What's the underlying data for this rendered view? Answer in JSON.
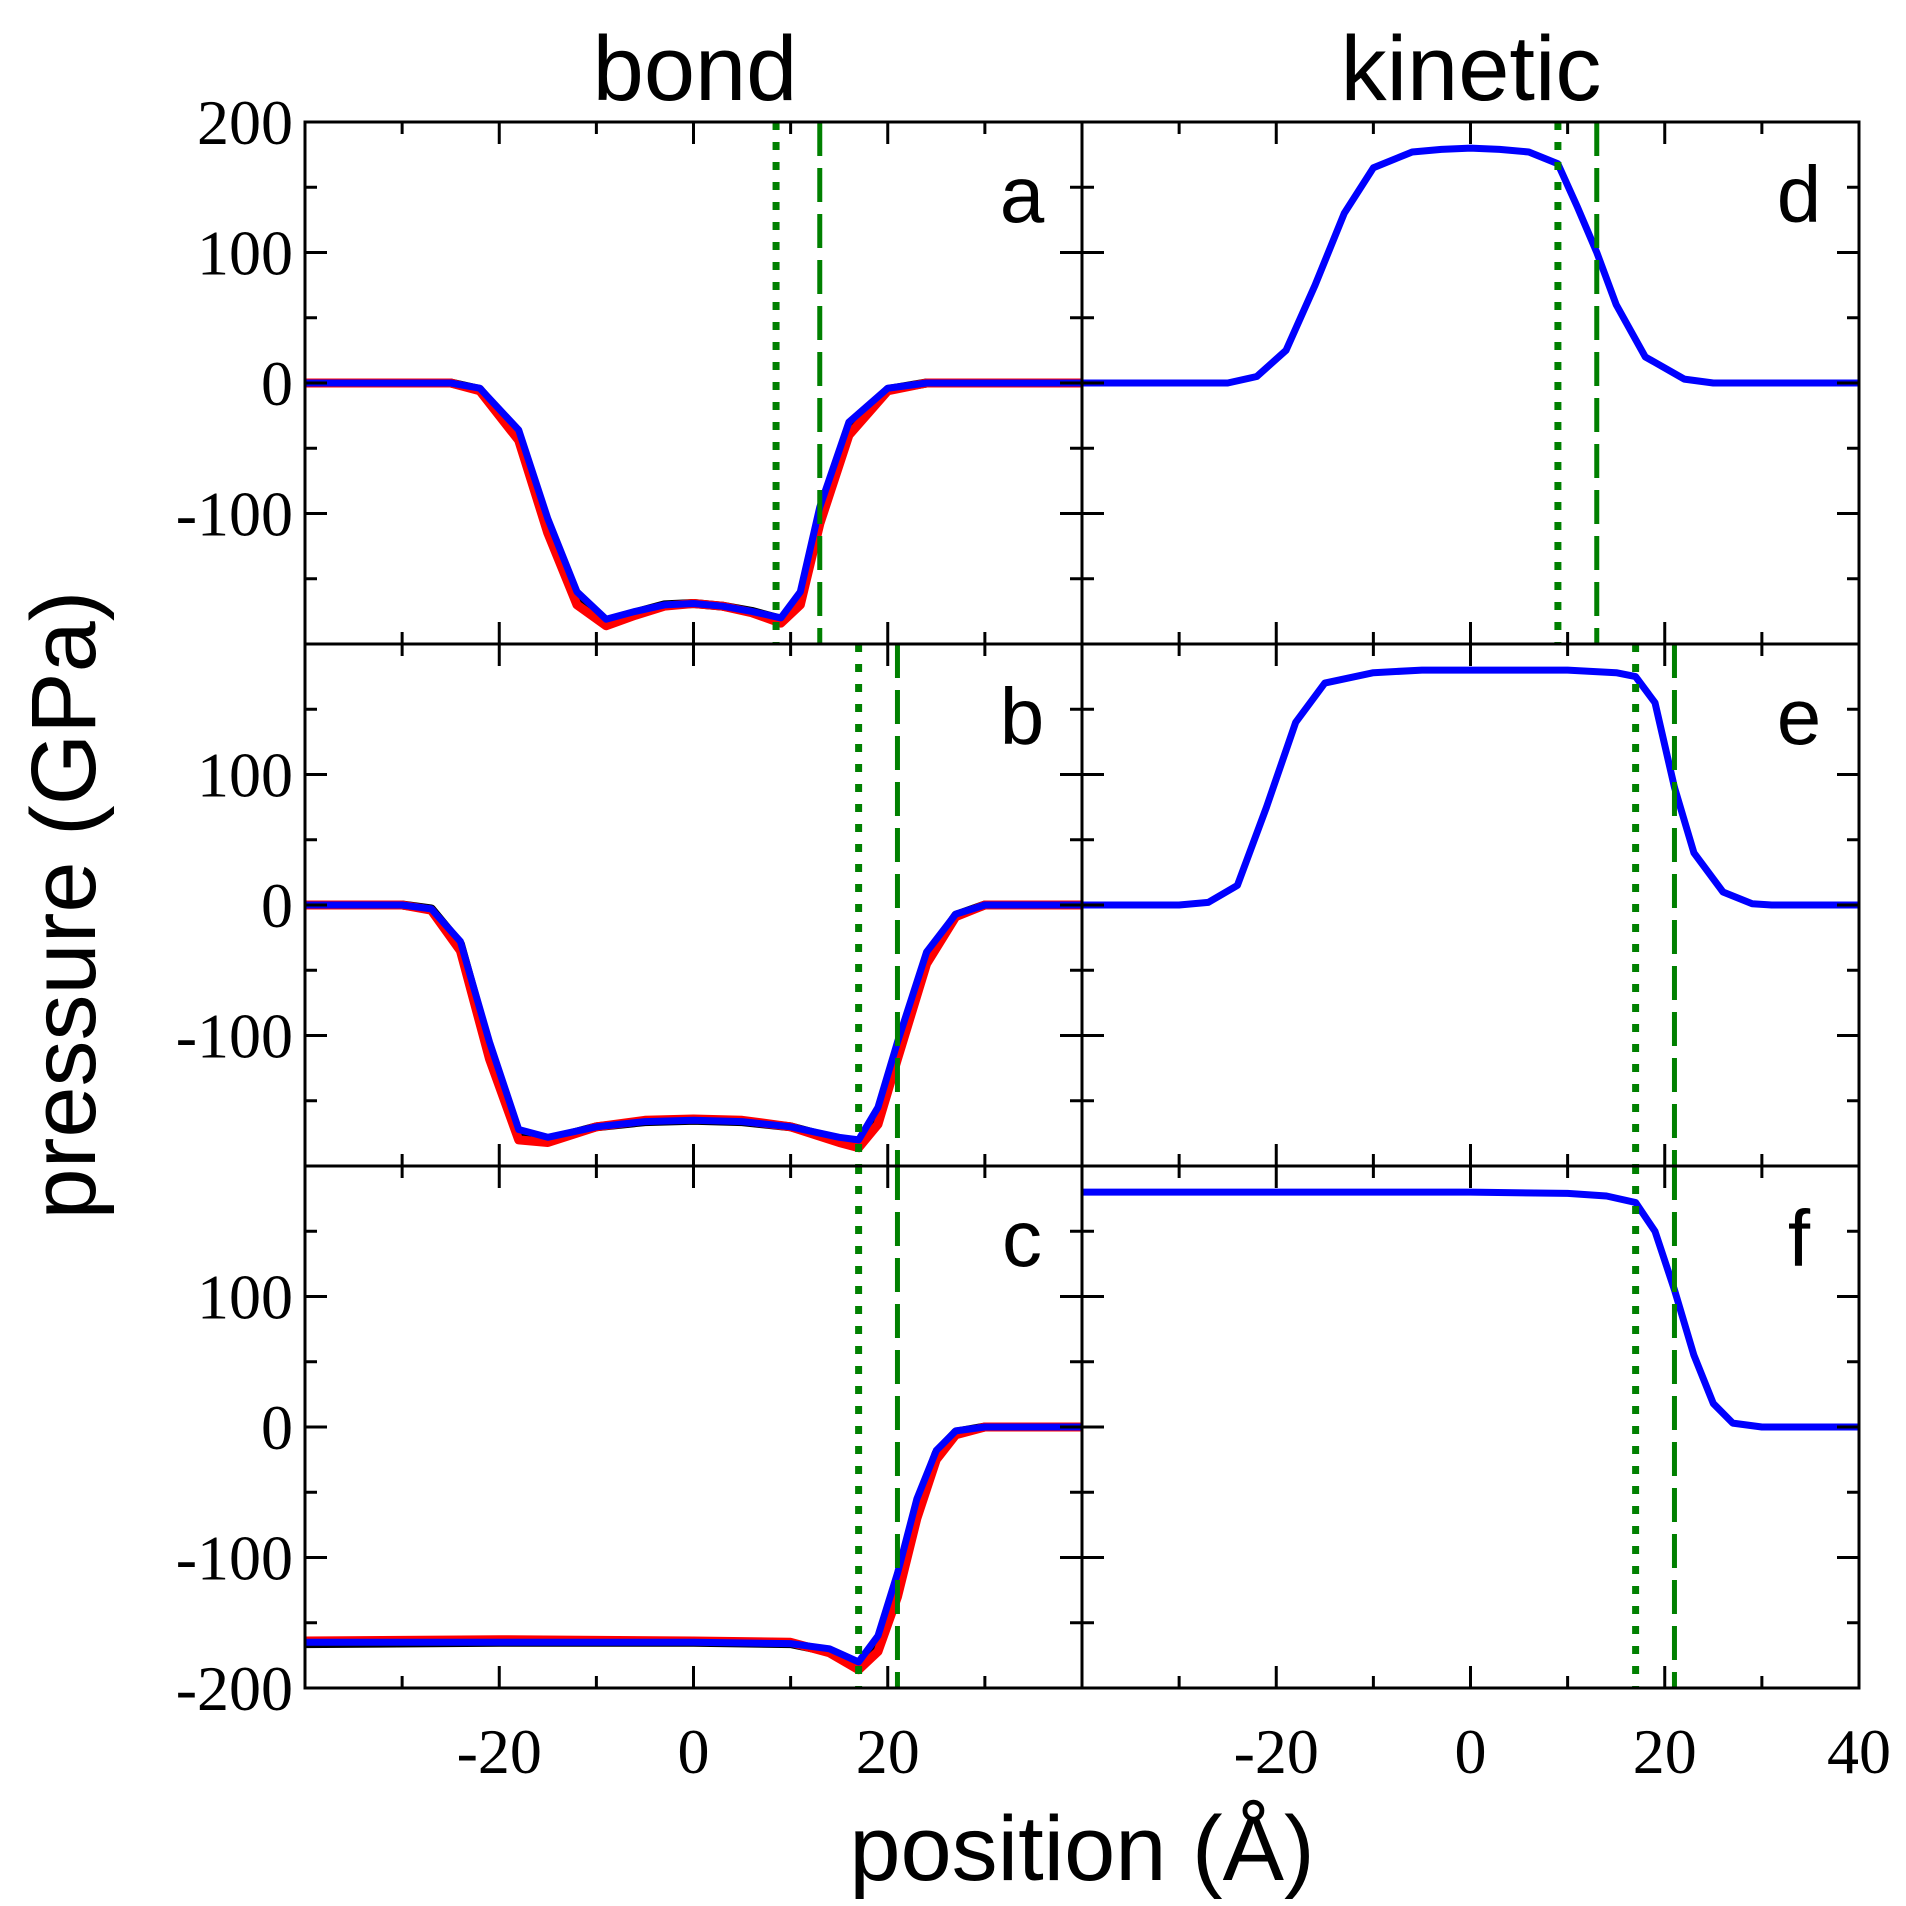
{
  "chart_data": {
    "type": "line",
    "layout": "3x2 grid of panels sharing x axis",
    "column_titles": [
      "bond",
      "kinetic"
    ],
    "xlabel": "position (Å)",
    "ylabel": "pressure (GPa)",
    "xlim": [
      -40,
      40
    ],
    "x_tick_labels": [
      "-20",
      "0",
      "20",
      "40"
    ],
    "colors": {
      "black": "#000000",
      "red": "#ff0000",
      "blue": "#0000ff",
      "green": "#008000"
    },
    "panels": [
      {
        "letter": "a",
        "column": "bond",
        "row": 0,
        "ylim": [
          -200,
          200
        ],
        "y_tick_labels": [
          "200",
          "100",
          "0",
          "-100"
        ],
        "vlines": {
          "dotted": 8.5,
          "dashed": 13
        },
        "series": [
          {
            "name": "black",
            "color": "black",
            "x": [
              -40,
              -25,
              -22,
              -18,
              -15,
              -12,
              -9,
              -6,
              -3,
              0,
              3,
              6,
              9,
              11,
              13,
              16,
              20,
              24,
              40
            ],
            "y": [
              0,
              0,
              -5,
              -40,
              -110,
              -165,
              -183,
              -176,
              -170,
              -169,
              -171,
              -175,
              -181,
              -165,
              -100,
              -35,
              -5,
              0,
              0
            ]
          },
          {
            "name": "red",
            "color": "red",
            "x": [
              -40,
              -25,
              -22,
              -18,
              -15,
              -12,
              -9,
              -6,
              -3,
              0,
              3,
              6,
              9,
              11,
              13,
              16,
              20,
              24,
              40
            ],
            "y": [
              0,
              0,
              -6,
              -44,
              -115,
              -170,
              -186,
              -178,
              -171,
              -169,
              -171,
              -176,
              -184,
              -170,
              -108,
              -40,
              -6,
              0,
              0
            ]
          },
          {
            "name": "blue",
            "color": "blue",
            "x": [
              -40,
              -25,
              -22,
              -18,
              -15,
              -12,
              -9,
              -6,
              -3,
              0,
              3,
              6,
              9,
              11,
              13,
              16,
              20,
              24,
              40
            ],
            "y": [
              0,
              0,
              -4,
              -36,
              -104,
              -160,
              -181,
              -175,
              -170,
              -169,
              -171,
              -175,
              -180,
              -160,
              -95,
              -30,
              -4,
              0,
              0
            ]
          }
        ]
      },
      {
        "letter": "b",
        "column": "bond",
        "row": 1,
        "ylim": [
          -200,
          200
        ],
        "y_tick_labels": [
          "100",
          "0",
          "-100"
        ],
        "vlines": {
          "dotted": 17,
          "dashed": 21
        },
        "series": [
          {
            "name": "black",
            "color": "black",
            "x": [
              -40,
              -30,
              -27,
              -24,
              -21,
              -18,
              -15,
              -10,
              -5,
              0,
              5,
              10,
              15,
              17,
              19,
              21,
              24,
              27,
              30,
              40
            ],
            "y": [
              0,
              0,
              -3,
              -30,
              -110,
              -175,
              -180,
              -170,
              -166,
              -165,
              -166,
              -170,
              -180,
              -182,
              -160,
              -110,
              -40,
              -8,
              0,
              0
            ]
          },
          {
            "name": "red",
            "color": "red",
            "x": [
              -40,
              -30,
              -27,
              -24,
              -21,
              -18,
              -15,
              -10,
              -5,
              0,
              5,
              10,
              15,
              17,
              19,
              21,
              24,
              27,
              30,
              40
            ],
            "y": [
              0,
              0,
              -4,
              -35,
              -118,
              -180,
              -182,
              -170,
              -165,
              -164,
              -165,
              -170,
              -182,
              -186,
              -168,
              -118,
              -45,
              -9,
              0,
              0
            ]
          },
          {
            "name": "blue",
            "color": "blue",
            "x": [
              -40,
              -30,
              -27,
              -24,
              -21,
              -18,
              -15,
              -10,
              -5,
              0,
              5,
              10,
              15,
              17,
              19,
              21,
              24,
              27,
              30,
              40
            ],
            "y": [
              0,
              0,
              -3,
              -28,
              -105,
              -172,
              -178,
              -170,
              -166,
              -165,
              -166,
              -170,
              -178,
              -180,
              -155,
              -105,
              -36,
              -7,
              0,
              0
            ]
          }
        ]
      },
      {
        "letter": "c",
        "column": "bond",
        "row": 2,
        "ylim": [
          -200,
          200
        ],
        "y_tick_labels": [
          "100",
          "0",
          "-100",
          "-200"
        ],
        "vlines": {
          "dotted": 17,
          "dashed": 21
        },
        "series": [
          {
            "name": "black",
            "color": "black",
            "x": [
              -40,
              -20,
              0,
              10,
              14,
              17,
              19,
              21,
              23,
              25,
              27,
              30,
              40
            ],
            "y": [
              -166,
              -165,
              -165,
              -166,
              -172,
              -182,
              -165,
              -120,
              -60,
              -20,
              -4,
              0,
              0
            ]
          },
          {
            "name": "red",
            "color": "red",
            "x": [
              -40,
              -20,
              0,
              10,
              14,
              17,
              19,
              21,
              23,
              25,
              27,
              30,
              40
            ],
            "y": [
              -164,
              -163,
              -164,
              -165,
              -173,
              -186,
              -172,
              -130,
              -70,
              -25,
              -6,
              0,
              0
            ]
          },
          {
            "name": "blue",
            "color": "blue",
            "x": [
              -40,
              -20,
              0,
              10,
              14,
              17,
              19,
              21,
              23,
              25,
              27,
              30,
              40
            ],
            "y": [
              -165,
              -165,
              -165,
              -166,
              -170,
              -180,
              -160,
              -112,
              -55,
              -18,
              -3,
              0,
              0
            ]
          }
        ]
      },
      {
        "letter": "d",
        "column": "kinetic",
        "row": 0,
        "ylim": [
          -200,
          200
        ],
        "y_tick_labels": [],
        "vlines": {
          "dotted": 9,
          "dashed": 13
        },
        "series": [
          {
            "name": "blue",
            "color": "blue",
            "x": [
              -40,
              -25,
              -22,
              -19,
              -16,
              -13,
              -10,
              -6,
              -3,
              0,
              3,
              6,
              9,
              11,
              13,
              15,
              18,
              22,
              25,
              40
            ],
            "y": [
              0,
              0,
              5,
              25,
              75,
              130,
              165,
              177,
              179,
              180,
              179,
              177,
              168,
              135,
              100,
              60,
              20,
              3,
              0,
              0
            ]
          }
        ]
      },
      {
        "letter": "e",
        "column": "kinetic",
        "row": 1,
        "ylim": [
          -200,
          200
        ],
        "y_tick_labels": [],
        "vlines": {
          "dotted": 17,
          "dashed": 21
        },
        "series": [
          {
            "name": "blue",
            "color": "blue",
            "x": [
              -40,
              -30,
              -27,
              -24,
              -21,
              -18,
              -15,
              -10,
              -5,
              0,
              5,
              10,
              15,
              17,
              19,
              21,
              23,
              26,
              29,
              31,
              40
            ],
            "y": [
              0,
              0,
              2,
              15,
              75,
              140,
              170,
              178,
              180,
              180,
              180,
              180,
              178,
              175,
              155,
              90,
              40,
              10,
              1,
              0,
              0
            ]
          }
        ]
      },
      {
        "letter": "f",
        "column": "kinetic",
        "row": 2,
        "ylim": [
          -200,
          200
        ],
        "y_tick_labels": [],
        "vlines": {
          "dotted": 17,
          "dashed": 21
        },
        "series": [
          {
            "name": "blue",
            "color": "blue",
            "x": [
              -40,
              -20,
              0,
              10,
              14,
              17,
              19,
              21,
              23,
              25,
              27,
              30,
              40
            ],
            "y": [
              180,
              180,
              180,
              179,
              177,
              172,
              150,
              105,
              55,
              18,
              3,
              0,
              0
            ]
          }
        ]
      }
    ]
  }
}
